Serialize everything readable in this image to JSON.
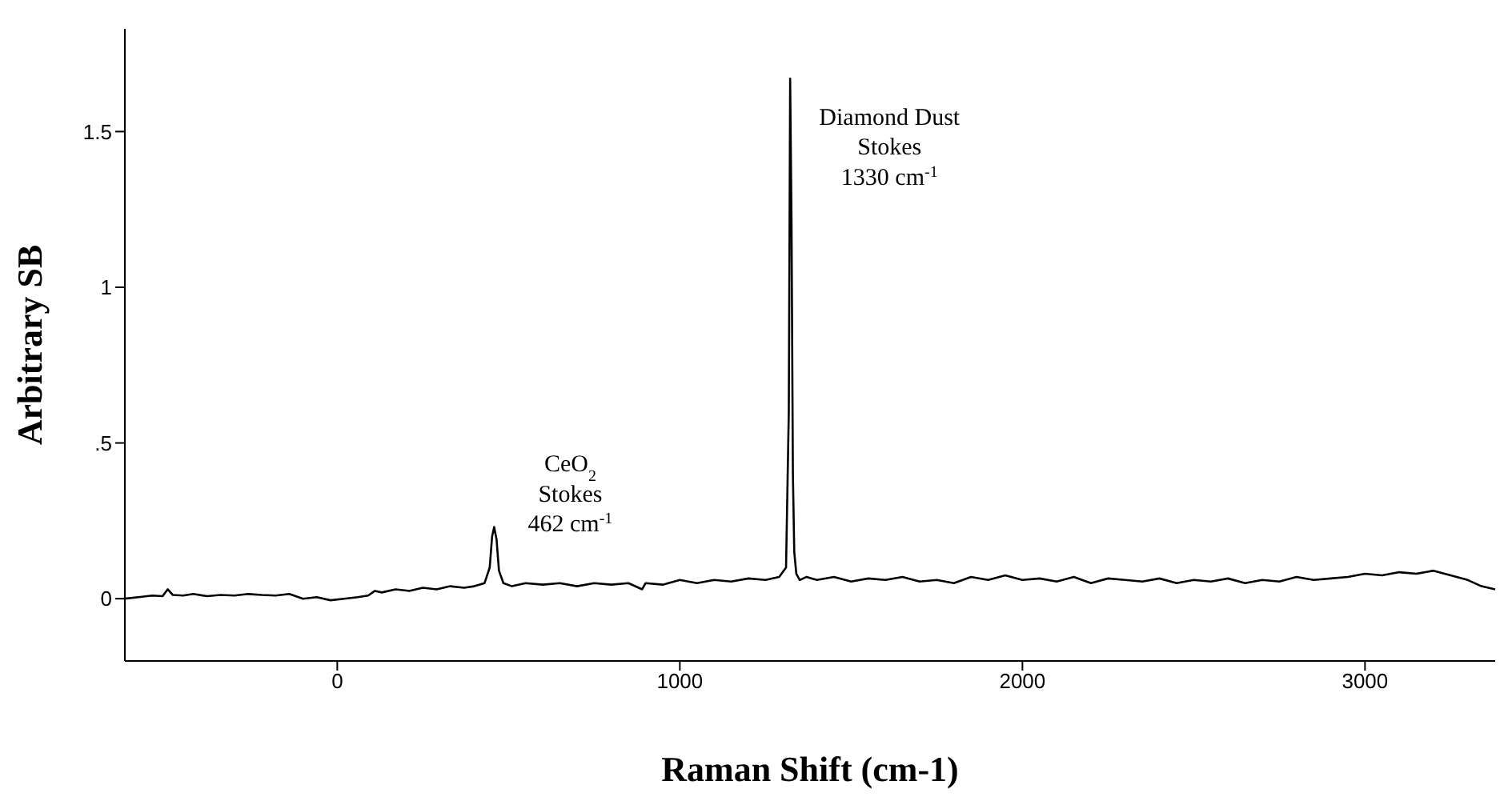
{
  "chart_data": {
    "type": "line",
    "xlabel": "Raman Shift (cm-1)",
    "ylabel": "Arbitrary SB",
    "xlim": [
      -620,
      3380
    ],
    "ylim": [
      -0.2,
      1.83
    ],
    "xticks": [
      0,
      1000,
      2000,
      3000
    ],
    "yticks": [
      0,
      {
        "value": 0.5,
        "label": ".5"
      },
      1,
      1.5
    ],
    "marker": "none",
    "line_style": "solid",
    "x": [
      -620,
      -580,
      -540,
      -510,
      -495,
      -480,
      -450,
      -420,
      -380,
      -340,
      -300,
      -260,
      -220,
      -180,
      -140,
      -100,
      -60,
      -20,
      20,
      60,
      90,
      110,
      130,
      170,
      210,
      250,
      290,
      330,
      370,
      400,
      430,
      445,
      452,
      458,
      465,
      472,
      485,
      510,
      550,
      600,
      650,
      700,
      750,
      800,
      850,
      890,
      900,
      950,
      1000,
      1050,
      1100,
      1150,
      1200,
      1250,
      1290,
      1310,
      1318,
      1322,
      1326,
      1330,
      1334,
      1340,
      1350,
      1370,
      1400,
      1450,
      1500,
      1550,
      1600,
      1650,
      1700,
      1750,
      1800,
      1850,
      1900,
      1950,
      2000,
      2050,
      2100,
      2150,
      2200,
      2250,
      2300,
      2350,
      2400,
      2450,
      2500,
      2550,
      2600,
      2650,
      2700,
      2750,
      2800,
      2850,
      2900,
      2950,
      3000,
      3050,
      3100,
      3150,
      3200,
      3250,
      3300,
      3340,
      3380
    ],
    "series": [
      {
        "color": "#000000",
        "values": [
          0.0,
          0.005,
          0.01,
          0.008,
          0.03,
          0.012,
          0.01,
          0.015,
          0.008,
          0.012,
          0.01,
          0.015,
          0.012,
          0.01,
          0.015,
          0.0,
          0.005,
          -0.005,
          0.0,
          0.005,
          0.01,
          0.025,
          0.02,
          0.03,
          0.025,
          0.035,
          0.03,
          0.04,
          0.035,
          0.04,
          0.05,
          0.1,
          0.2,
          0.23,
          0.19,
          0.09,
          0.05,
          0.04,
          0.05,
          0.045,
          0.05,
          0.04,
          0.05,
          0.045,
          0.05,
          0.03,
          0.05,
          0.045,
          0.06,
          0.05,
          0.06,
          0.055,
          0.065,
          0.06,
          0.07,
          0.1,
          0.6,
          1.67,
          1.2,
          0.4,
          0.15,
          0.08,
          0.06,
          0.07,
          0.06,
          0.07,
          0.055,
          0.065,
          0.06,
          0.07,
          0.055,
          0.06,
          0.05,
          0.07,
          0.06,
          0.075,
          0.06,
          0.065,
          0.055,
          0.07,
          0.05,
          0.065,
          0.06,
          0.055,
          0.065,
          0.05,
          0.06,
          0.055,
          0.065,
          0.05,
          0.06,
          0.055,
          0.07,
          0.06,
          0.065,
          0.07,
          0.08,
          0.075,
          0.085,
          0.08,
          0.09,
          0.075,
          0.06,
          0.04,
          0.03
        ]
      }
    ],
    "annotations": [
      "CeO$_{2}$\nStokes\n462 cm$^{-1}$",
      "Diamond Dust\nStokes\n1330 cm$^{-1}$"
    ]
  }
}
